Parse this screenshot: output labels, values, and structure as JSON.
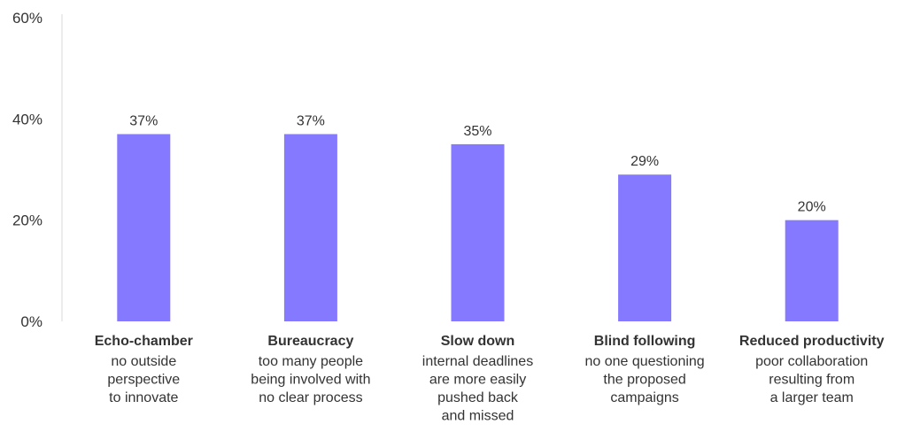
{
  "chart_data": {
    "type": "bar",
    "title": "",
    "xlabel": "",
    "ylabel": "",
    "ylim": [
      0,
      60
    ],
    "y_ticks": [
      "0%",
      "20%",
      "40%",
      "60%"
    ],
    "y_tick_values": [
      0,
      20,
      40,
      60
    ],
    "grid": false,
    "bar_color": "#8579FF",
    "categories": [
      {
        "title": "Echo-chamber",
        "description": [
          "no outside",
          "perspective",
          "to innovate"
        ]
      },
      {
        "title": "Bureaucracy",
        "description": [
          "too many people",
          "being involved with",
          "no clear process"
        ]
      },
      {
        "title": "Slow down",
        "description": [
          "internal deadlines",
          "are more easily",
          "pushed back",
          "and missed"
        ]
      },
      {
        "title": "Blind following",
        "description": [
          "no one questioning",
          "the proposed",
          "campaigns"
        ]
      },
      {
        "title": "Reduced productivity",
        "description": [
          "poor collaboration",
          "resulting from",
          "a larger team"
        ]
      }
    ],
    "values": [
      37,
      37,
      35,
      29,
      20
    ],
    "value_labels": [
      "37%",
      "37%",
      "35%",
      "29%",
      "20%"
    ]
  }
}
